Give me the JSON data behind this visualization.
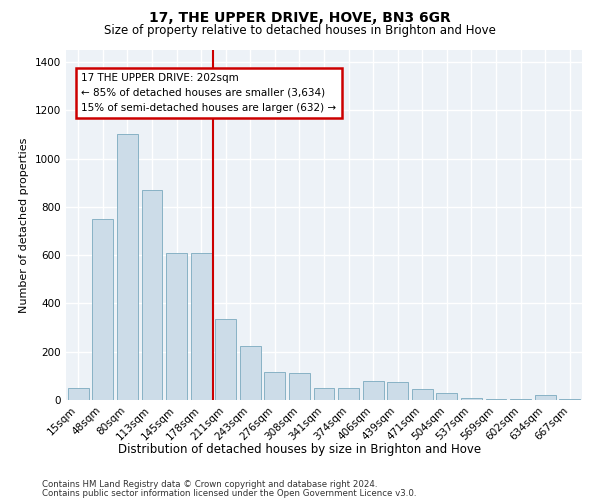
{
  "title": "17, THE UPPER DRIVE, HOVE, BN3 6GR",
  "subtitle": "Size of property relative to detached houses in Brighton and Hove",
  "xlabel": "Distribution of detached houses by size in Brighton and Hove",
  "ylabel": "Number of detached properties",
  "categories": [
    "15sqm",
    "48sqm",
    "80sqm",
    "113sqm",
    "145sqm",
    "178sqm",
    "211sqm",
    "243sqm",
    "276sqm",
    "308sqm",
    "341sqm",
    "374sqm",
    "406sqm",
    "439sqm",
    "471sqm",
    "504sqm",
    "537sqm",
    "569sqm",
    "602sqm",
    "634sqm",
    "667sqm"
  ],
  "values": [
    50,
    750,
    1100,
    870,
    610,
    610,
    335,
    225,
    115,
    110,
    50,
    50,
    80,
    75,
    45,
    30,
    10,
    5,
    5,
    20,
    5
  ],
  "bar_color": "#ccdce8",
  "bar_edge_color": "#7aaabf",
  "vline_pos": 5.5,
  "vline_color": "#cc0000",
  "annotation_line1": "17 THE UPPER DRIVE: 202sqm",
  "annotation_line2": "← 85% of detached houses are smaller (3,634)",
  "annotation_line3": "15% of semi-detached houses are larger (632) →",
  "ylim": [
    0,
    1450
  ],
  "yticks": [
    0,
    200,
    400,
    600,
    800,
    1000,
    1200,
    1400
  ],
  "footnote1": "Contains HM Land Registry data © Crown copyright and database right 2024.",
  "footnote2": "Contains public sector information licensed under the Open Government Licence v3.0.",
  "bg_color": "#edf2f7",
  "grid_color": "#ffffff"
}
